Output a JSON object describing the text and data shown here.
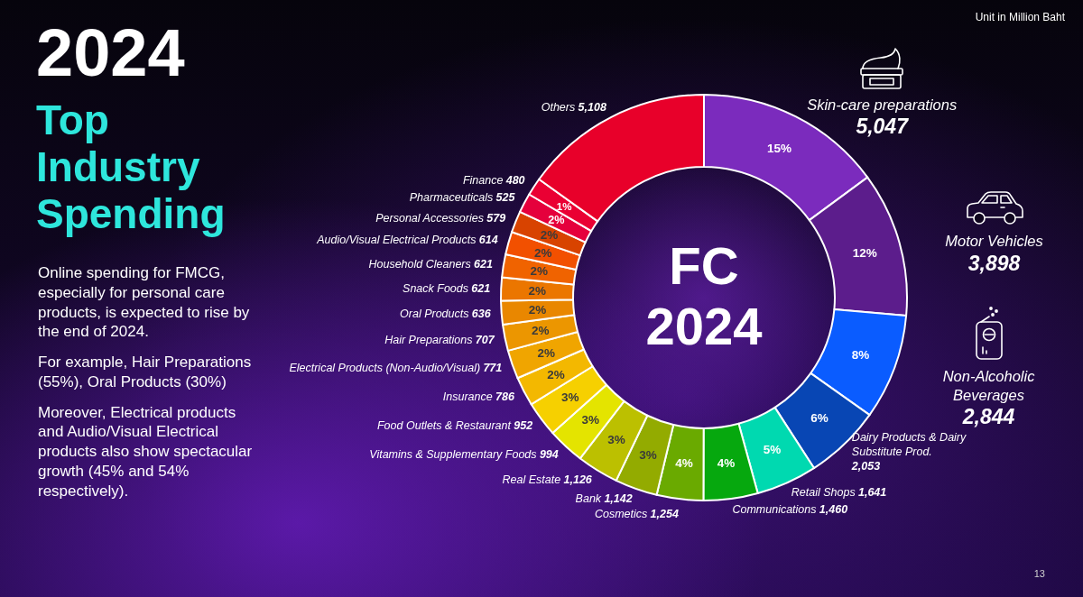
{
  "chart_data": {
    "type": "donut",
    "title": "2024",
    "subtitle": "Top Industry Spending",
    "categories": [
      "Skin-care preparations",
      "Motor Vehicles",
      "Non-Alcoholic Beverages",
      "Dairy Products & Dairy Substitute Prod.",
      "Retail Shops",
      "Communications",
      "Cosmetics",
      "Bank",
      "Real Estate",
      "Vitamins & Supplementary Foods",
      "Food Outlets & Restaurant",
      "Insurance",
      "Electrical Products (Non-Audio/Visual)",
      "Hair Preparations",
      "Oral Products",
      "Snack Foods",
      "Household Cleaners",
      "Audio/Visual Electrical Products",
      "Personal Accessories",
      "Pharmaceuticals",
      "Finance",
      "Others"
    ],
    "values": [
      5047,
      3898,
      2844,
      2053,
      1641,
      1460,
      1254,
      1142,
      1126,
      994,
      952,
      786,
      771,
      707,
      636,
      621,
      621,
      614,
      579,
      525,
      480,
      5108
    ],
    "value_labels": [
      "5,047",
      "3,898",
      "2,844",
      "2,053",
      "1,641",
      "1,460",
      "1,254",
      "1,142",
      "1,126",
      "994",
      "952",
      "786",
      "771",
      "707",
      "636",
      "621",
      "621",
      "614",
      "579",
      "525",
      "480",
      "5,108"
    ],
    "colors": [
      "#7b2bbd",
      "#5c1d8c",
      "#0a5cff",
      "#0846b4",
      "#00d9b0",
      "#06a80e",
      "#6aaa00",
      "#93ab00",
      "#bcc000",
      "#e4e400",
      "#f6d000",
      "#f3b800",
      "#f0a500",
      "#ec9600",
      "#e98700",
      "#eb7600",
      "#f06300",
      "#f25000",
      "#d84300",
      "#e5003c",
      "#ea0033",
      "#e8002a"
    ],
    "annotations": [
      "Online spending for FMCG, especially for personal care products, is expected to rise by the end of 2024.",
      "For example, Hair Preparations (55%), Oral Products (30%)",
      "Moreover, Electrical products and Audio/Visual Electrical products also show spectacular growth (45% and 54% respectively).",
      "Unit in Million Baht",
      "FC 2024",
      "13",
      {
        "text": "15%",
        "x": "Skin-care preparations"
      },
      {
        "text": "12%",
        "x": "Motor Vehicles"
      },
      {
        "text": "8%",
        "x": "Non-Alcoholic Beverages"
      },
      {
        "text": "6%",
        "x": "Dairy Products & Dairy Substitute Prod."
      },
      {
        "text": "5%",
        "x": "Retail Shops"
      },
      {
        "text": "4%",
        "x": "Communications"
      },
      {
        "text": "4%",
        "x": "Cosmetics"
      },
      {
        "text": "3%",
        "x": "Bank"
      },
      {
        "text": "3%",
        "x": "Real Estate"
      },
      {
        "text": "3%",
        "x": "Vitamins & Supplementary Foods"
      },
      {
        "text": "3%",
        "x": "Food Outlets & Restaurant"
      },
      {
        "text": "2%",
        "x": "Insurance"
      },
      {
        "text": "2%",
        "x": "Electrical Products (Non-Audio/Visual)"
      },
      {
        "text": "2%",
        "x": "Hair Preparations"
      },
      {
        "text": "2%",
        "x": "Oral Products"
      },
      {
        "text": "2%",
        "x": "Snack Foods"
      },
      {
        "text": "2%",
        "x": "Household Cleaners"
      },
      {
        "text": "2%",
        "x": "Audio/Visual Electrical Products"
      },
      {
        "text": "2%",
        "x": "Personal Accessories"
      },
      {
        "text": "2%",
        "x": "Pharmaceuticals"
      },
      {
        "text": "1%",
        "x": "Finance"
      }
    ]
  }
}
